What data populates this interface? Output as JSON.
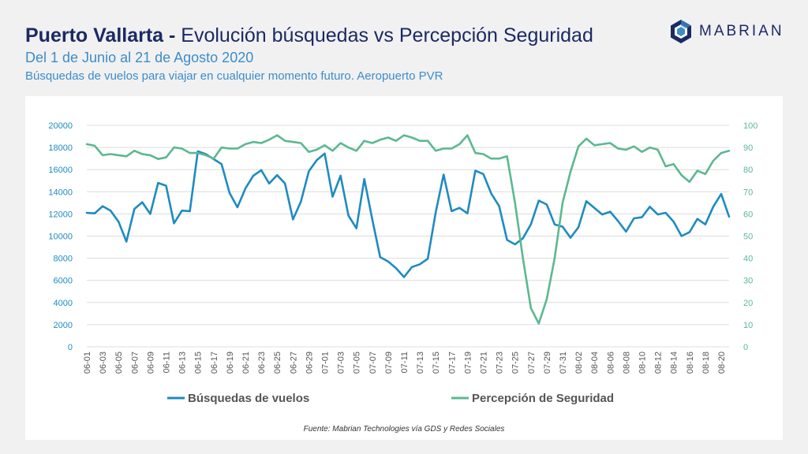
{
  "header": {
    "title_strong": "Puerto Vallarta - ",
    "title_rest": "Evolución búsquedas vs Percepción Seguridad",
    "subtitle": "Del 1 de Junio al 21 de Agosto 2020",
    "subtitle2": "Búsquedas de vuelos para viajar en cualquier momento futuro. Aeropuerto PVR"
  },
  "logo": {
    "text": "MABRIAN",
    "icon": "hexagon-logo-icon"
  },
  "footer": {
    "source": "Fuente: Mabrian Technologies vía GDS y Redes Sociales"
  },
  "colors": {
    "searches": "#1f8bbf",
    "security": "#5cb891",
    "title": "#1b2a63",
    "subtitle": "#3d8cc8"
  },
  "chart_data": {
    "type": "line",
    "x": [
      "06-01",
      "06-02",
      "06-03",
      "06-04",
      "06-05",
      "06-06",
      "06-07",
      "06-08",
      "06-09",
      "06-10",
      "06-11",
      "06-12",
      "06-13",
      "06-14",
      "06-15",
      "06-16",
      "06-17",
      "06-18",
      "06-19",
      "06-20",
      "06-21",
      "06-22",
      "06-23",
      "06-24",
      "06-25",
      "06-26",
      "06-27",
      "06-28",
      "06-29",
      "06-30",
      "07-01",
      "07-02",
      "07-03",
      "07-04",
      "07-05",
      "07-06",
      "07-07",
      "07-08",
      "07-09",
      "07-10",
      "07-11",
      "07-12",
      "07-13",
      "07-14",
      "07-15",
      "07-16",
      "07-17",
      "07-18",
      "07-19",
      "07-20",
      "07-21",
      "07-22",
      "07-23",
      "07-24",
      "07-25",
      "07-26",
      "07-27",
      "07-28",
      "07-29",
      "07-30",
      "07-31",
      "08-01",
      "08-02",
      "08-03",
      "08-04",
      "08-05",
      "08-06",
      "08-07",
      "08-08",
      "08-09",
      "08-10",
      "08-11",
      "08-12",
      "08-13",
      "08-14",
      "08-15",
      "08-16",
      "08-17",
      "08-18",
      "08-19",
      "08-20",
      "08-21"
    ],
    "xtick_labels": [
      "06-01",
      "06-03",
      "06-05",
      "06-07",
      "06-09",
      "06-11",
      "06-13",
      "06-15",
      "06-17",
      "06-19",
      "06-21",
      "06-23",
      "06-25",
      "06-27",
      "06-29",
      "07-01",
      "07-03",
      "07-05",
      "07-07",
      "07-09",
      "07-11",
      "07-13",
      "07-15",
      "07-17",
      "07-19",
      "07-21",
      "07-23",
      "07-25",
      "07-27",
      "07-29",
      "07-31",
      "08-02",
      "08-04",
      "08-06",
      "08-08",
      "08-10",
      "08-12",
      "08-14",
      "08-16",
      "08-18",
      "08-20"
    ],
    "y_left": {
      "ylim": [
        0,
        20000
      ],
      "ticks": [
        "0",
        "2000",
        "4000",
        "6000",
        "8000",
        "10000",
        "12000",
        "14000",
        "16000",
        "18000",
        "20000"
      ]
    },
    "y_right": {
      "ylim": [
        0,
        100
      ],
      "ticks": [
        "0",
        "10",
        "20",
        "30",
        "40",
        "50",
        "60",
        "70",
        "80",
        "90",
        "100"
      ]
    },
    "grid": true,
    "legend": "bottom",
    "series": [
      {
        "name": "Búsquedas de vuelos",
        "axis": "left",
        "values": [
          12100,
          12050,
          12700,
          12300,
          11300,
          9500,
          12450,
          13050,
          12000,
          14800,
          14550,
          11150,
          12300,
          12250,
          17650,
          17400,
          16950,
          16500,
          13900,
          12600,
          14300,
          15450,
          15950,
          14750,
          15500,
          14750,
          11500,
          13100,
          15850,
          16850,
          17450,
          13550,
          15450,
          11850,
          10700,
          15150,
          11500,
          8100,
          7700,
          7100,
          6300,
          7200,
          7450,
          7950,
          12150,
          15550,
          12250,
          12550,
          12050,
          15900,
          15600,
          13850,
          12700,
          9650,
          9250,
          9800,
          11050,
          13200,
          12850,
          11050,
          10850,
          9850,
          10800,
          13150,
          12550,
          11950,
          12200,
          11350,
          10400,
          11600,
          11700,
          12650,
          11950,
          12100,
          11300,
          10000,
          10350,
          11550,
          11050,
          12650,
          13800,
          11750
        ]
      },
      {
        "name": "Percepción de Seguridad",
        "axis": "right",
        "values": [
          91.5,
          90.8,
          86.5,
          87,
          86.5,
          86,
          88.5,
          87,
          86.5,
          84.8,
          85.5,
          90,
          89.5,
          87.5,
          87.5,
          86.5,
          85,
          90,
          89.5,
          89.5,
          91.5,
          92.5,
          92,
          93.5,
          95.5,
          93,
          92.5,
          92,
          88,
          89,
          91,
          88.5,
          92,
          90,
          88.5,
          93,
          92,
          93.5,
          94.5,
          93,
          95.5,
          94.5,
          93,
          93,
          88.5,
          89.5,
          89.5,
          91.5,
          95.5,
          87.5,
          87,
          85,
          85,
          86,
          65,
          40,
          17.5,
          10.5,
          21.5,
          40,
          65,
          79,
          90.5,
          94,
          91,
          91.5,
          92,
          89.5,
          89,
          90.5,
          88,
          90,
          89,
          81.5,
          82.5,
          77.5,
          74.5,
          79.5,
          78,
          84,
          87.5,
          88.5
        ]
      }
    ]
  }
}
